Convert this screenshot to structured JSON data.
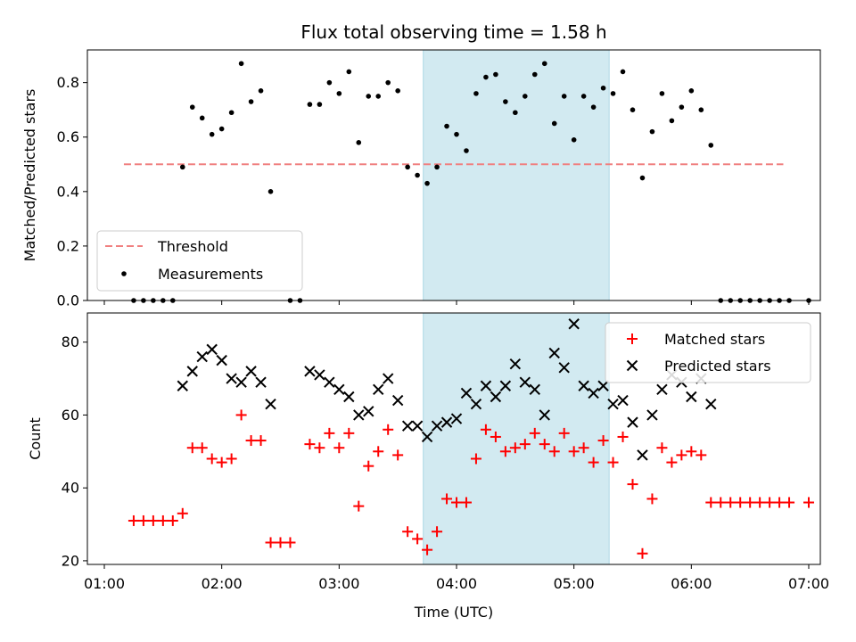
{
  "chart_data": [
    {
      "type": "scatter",
      "title": "Flux total observing time = 1.58 h",
      "xlabel": "",
      "ylabel": "Matched/Predicted stars",
      "ylim": [
        0.0,
        0.92
      ],
      "xlim": [
        "01:00",
        "07:00"
      ],
      "yticks": [
        "0.0",
        "0.2",
        "0.4",
        "0.6",
        "0.8"
      ],
      "legend_placement": "lower-left",
      "threshold": {
        "name": "Threshold",
        "value": 0.5,
        "x": [
          "01:10",
          "06:47"
        ],
        "color": "#f08080"
      },
      "shaded_region": {
        "x": [
          "03:43",
          "05:18"
        ],
        "color": "#add8e6"
      },
      "series": [
        {
          "name": "Measurements",
          "color": "#000000",
          "marker": "dot",
          "points": [
            [
              "01:15",
              0.0
            ],
            [
              "01:20",
              0.0
            ],
            [
              "01:25",
              0.0
            ],
            [
              "01:30",
              0.0
            ],
            [
              "01:35",
              0.0
            ],
            [
              "01:40",
              0.49
            ],
            [
              "01:45",
              0.71
            ],
            [
              "01:50",
              0.67
            ],
            [
              "01:55",
              0.61
            ],
            [
              "02:00",
              0.63
            ],
            [
              "02:05",
              0.69
            ],
            [
              "02:10",
              0.87
            ],
            [
              "02:15",
              0.73
            ],
            [
              "02:20",
              0.77
            ],
            [
              "02:25",
              0.4
            ],
            [
              "02:35",
              0.0
            ],
            [
              "02:40",
              0.0
            ],
            [
              "02:45",
              0.72
            ],
            [
              "02:50",
              0.72
            ],
            [
              "02:55",
              0.8
            ],
            [
              "03:00",
              0.76
            ],
            [
              "03:05",
              0.84
            ],
            [
              "03:10",
              0.58
            ],
            [
              "03:15",
              0.75
            ],
            [
              "03:20",
              0.75
            ],
            [
              "03:25",
              0.8
            ],
            [
              "03:30",
              0.77
            ],
            [
              "03:35",
              0.49
            ],
            [
              "03:40",
              0.46
            ],
            [
              "03:45",
              0.43
            ],
            [
              "03:50",
              0.49
            ],
            [
              "03:55",
              0.64
            ],
            [
              "04:00",
              0.61
            ],
            [
              "04:05",
              0.55
            ],
            [
              "04:10",
              0.76
            ],
            [
              "04:15",
              0.82
            ],
            [
              "04:20",
              0.83
            ],
            [
              "04:25",
              0.73
            ],
            [
              "04:30",
              0.69
            ],
            [
              "04:35",
              0.75
            ],
            [
              "04:40",
              0.83
            ],
            [
              "04:45",
              0.87
            ],
            [
              "04:50",
              0.65
            ],
            [
              "04:55",
              0.75
            ],
            [
              "05:00",
              0.59
            ],
            [
              "05:05",
              0.75
            ],
            [
              "05:10",
              0.71
            ],
            [
              "05:15",
              0.78
            ],
            [
              "05:20",
              0.76
            ],
            [
              "05:25",
              0.84
            ],
            [
              "05:30",
              0.7
            ],
            [
              "05:35",
              0.45
            ],
            [
              "05:40",
              0.62
            ],
            [
              "05:45",
              0.76
            ],
            [
              "05:50",
              0.66
            ],
            [
              "05:55",
              0.71
            ],
            [
              "06:00",
              0.77
            ],
            [
              "06:05",
              0.7
            ],
            [
              "06:10",
              0.57
            ],
            [
              "06:15",
              0.0
            ],
            [
              "06:20",
              0.0
            ],
            [
              "06:25",
              0.0
            ],
            [
              "06:30",
              0.0
            ],
            [
              "06:35",
              0.0
            ],
            [
              "06:40",
              0.0
            ],
            [
              "06:45",
              0.0
            ],
            [
              "06:50",
              0.0
            ],
            [
              "07:00",
              0.0
            ]
          ]
        }
      ]
    },
    {
      "type": "scatter",
      "title": "",
      "xlabel": "Time (UTC)",
      "ylabel": "Count",
      "ylim": [
        19,
        88
      ],
      "xlim": [
        "01:00",
        "07:00"
      ],
      "xticks": [
        "01:00",
        "02:00",
        "03:00",
        "04:00",
        "05:00",
        "06:00",
        "07:00"
      ],
      "yticks": [
        "20",
        "40",
        "60",
        "80"
      ],
      "legend_placement": "upper-right",
      "shaded_region": {
        "x": [
          "03:43",
          "05:18"
        ],
        "color": "#add8e6"
      },
      "series": [
        {
          "name": "Matched stars",
          "color": "#ff0000",
          "marker": "plus",
          "points": [
            [
              "01:15",
              31
            ],
            [
              "01:20",
              31
            ],
            [
              "01:25",
              31
            ],
            [
              "01:30",
              31
            ],
            [
              "01:35",
              31
            ],
            [
              "01:40",
              33
            ],
            [
              "01:45",
              51
            ],
            [
              "01:50",
              51
            ],
            [
              "01:55",
              48
            ],
            [
              "02:00",
              47
            ],
            [
              "02:05",
              48
            ],
            [
              "02:10",
              60
            ],
            [
              "02:15",
              53
            ],
            [
              "02:20",
              53
            ],
            [
              "02:25",
              25
            ],
            [
              "02:30",
              25
            ],
            [
              "02:35",
              25
            ],
            [
              "02:45",
              52
            ],
            [
              "02:50",
              51
            ],
            [
              "02:55",
              55
            ],
            [
              "03:00",
              51
            ],
            [
              "03:05",
              55
            ],
            [
              "03:10",
              35
            ],
            [
              "03:15",
              46
            ],
            [
              "03:20",
              50
            ],
            [
              "03:25",
              56
            ],
            [
              "03:30",
              49
            ],
            [
              "03:35",
              28
            ],
            [
              "03:40",
              26
            ],
            [
              "03:45",
              23
            ],
            [
              "03:50",
              28
            ],
            [
              "03:55",
              37
            ],
            [
              "04:00",
              36
            ],
            [
              "04:05",
              36
            ],
            [
              "04:10",
              48
            ],
            [
              "04:15",
              56
            ],
            [
              "04:20",
              54
            ],
            [
              "04:25",
              50
            ],
            [
              "04:30",
              51
            ],
            [
              "04:35",
              52
            ],
            [
              "04:40",
              55
            ],
            [
              "04:45",
              52
            ],
            [
              "04:50",
              50
            ],
            [
              "04:55",
              55
            ],
            [
              "05:00",
              50
            ],
            [
              "05:05",
              51
            ],
            [
              "05:10",
              47
            ],
            [
              "05:15",
              53
            ],
            [
              "05:20",
              47
            ],
            [
              "05:25",
              54
            ],
            [
              "05:30",
              41
            ],
            [
              "05:35",
              22
            ],
            [
              "05:40",
              37
            ],
            [
              "05:45",
              51
            ],
            [
              "05:50",
              47
            ],
            [
              "05:55",
              49
            ],
            [
              "06:00",
              50
            ],
            [
              "06:05",
              49
            ],
            [
              "06:10",
              36
            ],
            [
              "06:15",
              36
            ],
            [
              "06:20",
              36
            ],
            [
              "06:25",
              36
            ],
            [
              "06:30",
              36
            ],
            [
              "06:35",
              36
            ],
            [
              "06:40",
              36
            ],
            [
              "06:45",
              36
            ],
            [
              "06:50",
              36
            ],
            [
              "07:00",
              36
            ]
          ]
        },
        {
          "name": "Predicted stars",
          "color": "#000000",
          "marker": "x",
          "points": [
            [
              "01:40",
              68
            ],
            [
              "01:45",
              72
            ],
            [
              "01:50",
              76
            ],
            [
              "01:55",
              78
            ],
            [
              "02:00",
              75
            ],
            [
              "02:05",
              70
            ],
            [
              "02:10",
              69
            ],
            [
              "02:15",
              72
            ],
            [
              "02:20",
              69
            ],
            [
              "02:25",
              63
            ],
            [
              "02:45",
              72
            ],
            [
              "02:50",
              71
            ],
            [
              "02:55",
              69
            ],
            [
              "03:00",
              67
            ],
            [
              "03:05",
              65
            ],
            [
              "03:10",
              60
            ],
            [
              "03:15",
              61
            ],
            [
              "03:20",
              67
            ],
            [
              "03:25",
              70
            ],
            [
              "03:30",
              64
            ],
            [
              "03:35",
              57
            ],
            [
              "03:40",
              57
            ],
            [
              "03:45",
              54
            ],
            [
              "03:50",
              57
            ],
            [
              "03:55",
              58
            ],
            [
              "04:00",
              59
            ],
            [
              "04:05",
              66
            ],
            [
              "04:10",
              63
            ],
            [
              "04:15",
              68
            ],
            [
              "04:20",
              65
            ],
            [
              "04:25",
              68
            ],
            [
              "04:30",
              74
            ],
            [
              "04:35",
              69
            ],
            [
              "04:40",
              67
            ],
            [
              "04:45",
              60
            ],
            [
              "04:50",
              77
            ],
            [
              "04:55",
              73
            ],
            [
              "05:00",
              85
            ],
            [
              "05:05",
              68
            ],
            [
              "05:10",
              66
            ],
            [
              "05:15",
              68
            ],
            [
              "05:20",
              63
            ],
            [
              "05:25",
              64
            ],
            [
              "05:30",
              58
            ],
            [
              "05:35",
              49
            ],
            [
              "05:40",
              60
            ],
            [
              "05:45",
              67
            ],
            [
              "05:50",
              71
            ],
            [
              "05:55",
              69
            ],
            [
              "06:00",
              65
            ],
            [
              "06:05",
              70
            ],
            [
              "06:10",
              63
            ]
          ]
        }
      ]
    }
  ]
}
